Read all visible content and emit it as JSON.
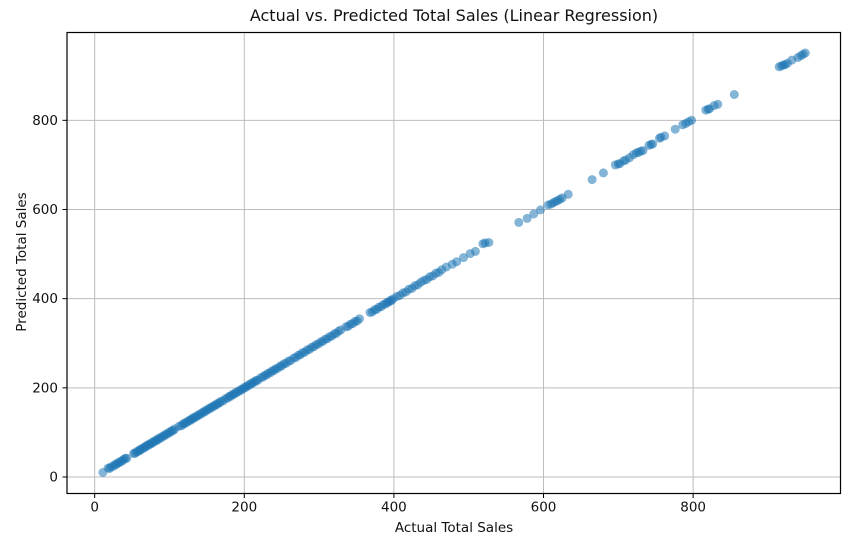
{
  "figure": {
    "title": "Actual vs. Predicted Total Sales (Linear Regression)",
    "xlabel": "Actual Total Sales",
    "ylabel": "Predicted Total Sales"
  },
  "chart_data": {
    "type": "scatter",
    "title": "Actual vs. Predicted Total Sales (Linear Regression)",
    "xlabel": "Actual Total Sales",
    "ylabel": "Predicted Total Sales",
    "xlim": [
      -37,
      997
    ],
    "ylim": [
      -37,
      997
    ],
    "xticks": [
      0,
      200,
      400,
      600,
      800
    ],
    "yticks": [
      0,
      200,
      400,
      600,
      800
    ],
    "grid": true,
    "legend_position": "none",
    "grid_color": "#bdbdbd",
    "spine_color": "#000000",
    "marker_color": "#1f77b4",
    "marker_alpha": 0.55,
    "marker_radius": 4.5,
    "points": [
      [
        11,
        10
      ],
      [
        18,
        20
      ],
      [
        20,
        19
      ],
      [
        22,
        23
      ],
      [
        25,
        24
      ],
      [
        27,
        28
      ],
      [
        29,
        28
      ],
      [
        31,
        32
      ],
      [
        33,
        32
      ],
      [
        35,
        36
      ],
      [
        37,
        36
      ],
      [
        39,
        40
      ],
      [
        41,
        42
      ],
      [
        43,
        42
      ],
      [
        52,
        53
      ],
      [
        54,
        53
      ],
      [
        56,
        57
      ],
      [
        58,
        57
      ],
      [
        60,
        61
      ],
      [
        61,
        60
      ],
      [
        63,
        64
      ],
      [
        65,
        64
      ],
      [
        67,
        68
      ],
      [
        68,
        67
      ],
      [
        70,
        71
      ],
      [
        72,
        71
      ],
      [
        73,
        74
      ],
      [
        75,
        74
      ],
      [
        77,
        78
      ],
      [
        78,
        77
      ],
      [
        80,
        81
      ],
      [
        82,
        81
      ],
      [
        84,
        85
      ],
      [
        85,
        84
      ],
      [
        87,
        88
      ],
      [
        89,
        88
      ],
      [
        91,
        92
      ],
      [
        93,
        92
      ],
      [
        95,
        96
      ],
      [
        97,
        96
      ],
      [
        99,
        100
      ],
      [
        101,
        100
      ],
      [
        103,
        104
      ],
      [
        105,
        104
      ],
      [
        107,
        108
      ],
      [
        113,
        114
      ],
      [
        116,
        115
      ],
      [
        118,
        119
      ],
      [
        120,
        119
      ],
      [
        122,
        123
      ],
      [
        124,
        123
      ],
      [
        126,
        127
      ],
      [
        128,
        127
      ],
      [
        130,
        131
      ],
      [
        131,
        130
      ],
      [
        133,
        134
      ],
      [
        135,
        134
      ],
      [
        137,
        138
      ],
      [
        139,
        138
      ],
      [
        141,
        142
      ],
      [
        143,
        142
      ],
      [
        145,
        146
      ],
      [
        147,
        146
      ],
      [
        149,
        150
      ],
      [
        151,
        150
      ],
      [
        153,
        154
      ],
      [
        155,
        154
      ],
      [
        157,
        158
      ],
      [
        159,
        158
      ],
      [
        161,
        162
      ],
      [
        163,
        162
      ],
      [
        165,
        166
      ],
      [
        167,
        166
      ],
      [
        169,
        170
      ],
      [
        172,
        171
      ],
      [
        175,
        176
      ],
      [
        178,
        177
      ],
      [
        180,
        181
      ],
      [
        182,
        181
      ],
      [
        184,
        185
      ],
      [
        186,
        185
      ],
      [
        188,
        189
      ],
      [
        190,
        189
      ],
      [
        192,
        193
      ],
      [
        194,
        193
      ],
      [
        196,
        197
      ],
      [
        198,
        197
      ],
      [
        200,
        201
      ],
      [
        202,
        201
      ],
      [
        204,
        205
      ],
      [
        206,
        205
      ],
      [
        208,
        209
      ],
      [
        210,
        209
      ],
      [
        212,
        213
      ],
      [
        214,
        213
      ],
      [
        216,
        217
      ],
      [
        218,
        217
      ],
      [
        222,
        223
      ],
      [
        225,
        224
      ],
      [
        227,
        228
      ],
      [
        230,
        229
      ],
      [
        232,
        233
      ],
      [
        235,
        234
      ],
      [
        237,
        238
      ],
      [
        240,
        239
      ],
      [
        242,
        243
      ],
      [
        245,
        244
      ],
      [
        248,
        249
      ],
      [
        250,
        249
      ],
      [
        253,
        254
      ],
      [
        256,
        255
      ],
      [
        259,
        260
      ],
      [
        262,
        261
      ],
      [
        266,
        267
      ],
      [
        269,
        268
      ],
      [
        272,
        273
      ],
      [
        275,
        274
      ],
      [
        278,
        279
      ],
      [
        281,
        280
      ],
      [
        284,
        285
      ],
      [
        287,
        286
      ],
      [
        290,
        291
      ],
      [
        293,
        292
      ],
      [
        296,
        297
      ],
      [
        299,
        298
      ],
      [
        302,
        303
      ],
      [
        305,
        304
      ],
      [
        308,
        309
      ],
      [
        311,
        310
      ],
      [
        314,
        315
      ],
      [
        317,
        316
      ],
      [
        320,
        321
      ],
      [
        323,
        322
      ],
      [
        326,
        327
      ],
      [
        329,
        330
      ],
      [
        336,
        337
      ],
      [
        339,
        338
      ],
      [
        342,
        343
      ],
      [
        345,
        344
      ],
      [
        348,
        349
      ],
      [
        351,
        350
      ],
      [
        354,
        355
      ],
      [
        368,
        369
      ],
      [
        371,
        370
      ],
      [
        374,
        375
      ],
      [
        377,
        376
      ],
      [
        380,
        381
      ],
      [
        383,
        382
      ],
      [
        386,
        387
      ],
      [
        389,
        388
      ],
      [
        391,
        392
      ],
      [
        393,
        392
      ],
      [
        395,
        396
      ],
      [
        397,
        396
      ],
      [
        399,
        400
      ],
      [
        404,
        405
      ],
      [
        408,
        407
      ],
      [
        412,
        413
      ],
      [
        416,
        415
      ],
      [
        420,
        421
      ],
      [
        424,
        423
      ],
      [
        428,
        429
      ],
      [
        432,
        431
      ],
      [
        436,
        437
      ],
      [
        440,
        441
      ],
      [
        444,
        443
      ],
      [
        448,
        449
      ],
      [
        452,
        451
      ],
      [
        456,
        457
      ],
      [
        460,
        459
      ],
      [
        464,
        465
      ],
      [
        470,
        471
      ],
      [
        478,
        477
      ],
      [
        484,
        483
      ],
      [
        493,
        492
      ],
      [
        502,
        501
      ],
      [
        509,
        506
      ],
      [
        519,
        523
      ],
      [
        522,
        525
      ],
      [
        527,
        526
      ],
      [
        567,
        571
      ],
      [
        578,
        580
      ],
      [
        587,
        590
      ],
      [
        596,
        599
      ],
      [
        606,
        610
      ],
      [
        610,
        612
      ],
      [
        613,
        615
      ],
      [
        616,
        618
      ],
      [
        619,
        620
      ],
      [
        622,
        623
      ],
      [
        625,
        626
      ],
      [
        633,
        634
      ],
      [
        665,
        667
      ],
      [
        680,
        682
      ],
      [
        696,
        700
      ],
      [
        700,
        702
      ],
      [
        702,
        703
      ],
      [
        707,
        709
      ],
      [
        710,
        711
      ],
      [
        715,
        716
      ],
      [
        720,
        723
      ],
      [
        724,
        727
      ],
      [
        727,
        728
      ],
      [
        730,
        731
      ],
      [
        733,
        732
      ],
      [
        741,
        744
      ],
      [
        744,
        746
      ],
      [
        746,
        747
      ],
      [
        755,
        760
      ],
      [
        757,
        762
      ],
      [
        762,
        765
      ],
      [
        776,
        780
      ],
      [
        786,
        790
      ],
      [
        790,
        793
      ],
      [
        794,
        797
      ],
      [
        798,
        800
      ],
      [
        817,
        823
      ],
      [
        820,
        825
      ],
      [
        822,
        826
      ],
      [
        828,
        833
      ],
      [
        833,
        836
      ],
      [
        855,
        858
      ],
      [
        915,
        920
      ],
      [
        918,
        922
      ],
      [
        921,
        924
      ],
      [
        923,
        925
      ],
      [
        926,
        928
      ],
      [
        932,
        935
      ],
      [
        940,
        941
      ],
      [
        944,
        945
      ],
      [
        947,
        948
      ],
      [
        950,
        951
      ]
    ]
  }
}
